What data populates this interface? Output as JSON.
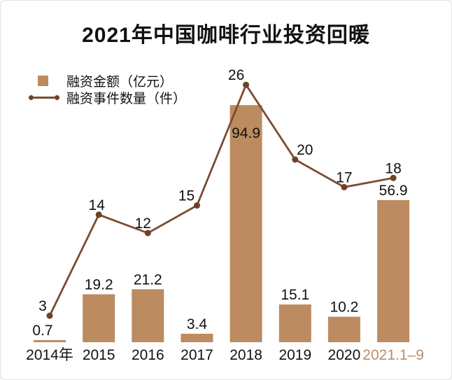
{
  "title": "2021年中国咖啡行业投资回暖",
  "legend": {
    "items": [
      {
        "label": "融资金额（亿元）",
        "marker": "square"
      },
      {
        "label": "融资事件数量（件）",
        "marker": "line-dot"
      }
    ]
  },
  "colors": {
    "bar": "#bc8b60",
    "line": "#7a4c30",
    "dot": "#6e4226",
    "label_text": "#111111",
    "tick_text": "#111111",
    "highlight_tick": "#c08d62",
    "background": "#ffffff",
    "frame_border": "#e3e3e3"
  },
  "chart_data": {
    "type": "bar+line",
    "title": "2021年中国咖啡行业投资回暖",
    "xlabel": "",
    "ylabel": "",
    "categories": [
      "2014年",
      "2015",
      "2016",
      "2017",
      "2018",
      "2019",
      "2020",
      "2021.1–9"
    ],
    "series": [
      {
        "name": "融资金额（亿元）",
        "type": "bar",
        "values": [
          0.7,
          19.2,
          21.2,
          3.4,
          94.9,
          15.1,
          10.2,
          56.9
        ]
      },
      {
        "name": "融资事件数量（件）",
        "type": "line",
        "values": [
          3,
          14,
          12,
          15,
          26,
          20,
          17,
          18
        ]
      }
    ],
    "value_labels_shown": true,
    "layout_hints": {
      "legend_position": "top-left",
      "grid": "off",
      "axes_hidden": true,
      "highlighted_category_index": 7,
      "bar_label_inside_index": 4
    }
  }
}
